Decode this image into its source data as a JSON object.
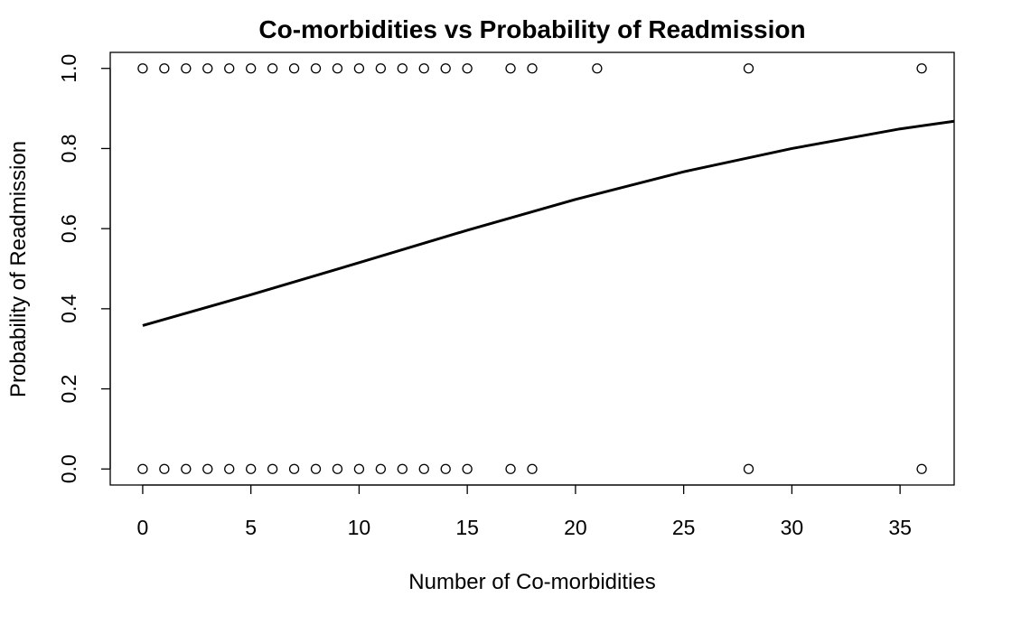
{
  "chart_data": {
    "type": "scatter",
    "title": "Co-morbidities vs Probability of Readmission",
    "xlabel": "Number of Co-morbidities",
    "ylabel": "Probability of Readmission",
    "xlim": [
      -1.5,
      37.5
    ],
    "ylim": [
      -0.04,
      1.04
    ],
    "xticks": [
      0,
      5,
      10,
      15,
      20,
      25,
      30,
      35
    ],
    "yticks": [
      0.0,
      0.2,
      0.4,
      0.6,
      0.8,
      1.0
    ],
    "xtick_labels": [
      "0",
      "5",
      "10",
      "15",
      "20",
      "25",
      "30",
      "35"
    ],
    "ytick_labels": [
      "0.0",
      "0.2",
      "0.4",
      "0.6",
      "0.8",
      "1.0"
    ],
    "grid": false,
    "points": {
      "x": [
        0,
        1,
        2,
        3,
        4,
        5,
        6,
        7,
        8,
        9,
        10,
        11,
        12,
        13,
        14,
        15,
        17,
        18,
        21,
        28,
        36,
        0,
        1,
        2,
        3,
        4,
        5,
        6,
        7,
        8,
        9,
        10,
        11,
        12,
        13,
        14,
        15,
        17,
        18,
        28,
        36
      ],
      "y": [
        1,
        1,
        1,
        1,
        1,
        1,
        1,
        1,
        1,
        1,
        1,
        1,
        1,
        1,
        1,
        1,
        1,
        1,
        1,
        1,
        1,
        0,
        0,
        0,
        0,
        0,
        0,
        0,
        0,
        0,
        0,
        0,
        0,
        0,
        0,
        0,
        0,
        0,
        0,
        0,
        0
      ]
    },
    "fitted_curve": {
      "x": [
        0,
        5,
        10,
        15,
        20,
        25,
        30,
        35,
        37.5
      ],
      "y": [
        0.358,
        0.435,
        0.515,
        0.596,
        0.673,
        0.742,
        0.8,
        0.849,
        0.868
      ]
    }
  }
}
